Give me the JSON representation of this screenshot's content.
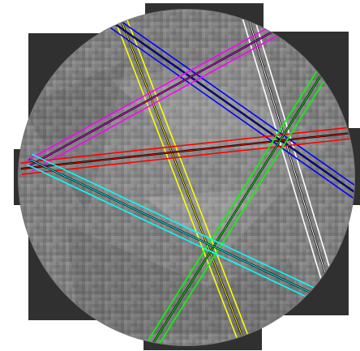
{
  "image": {
    "kind": "electron-backscatter-diffraction-pattern",
    "band_colors": {
      "white": "#ffffff",
      "yellow": "#ffff00",
      "blue": "#0000ff",
      "magenta": "#ff00ff",
      "red": "#ff0000",
      "green": "#00ff00",
      "cyan": "#00ffff",
      "black": "#000000"
    }
  }
}
